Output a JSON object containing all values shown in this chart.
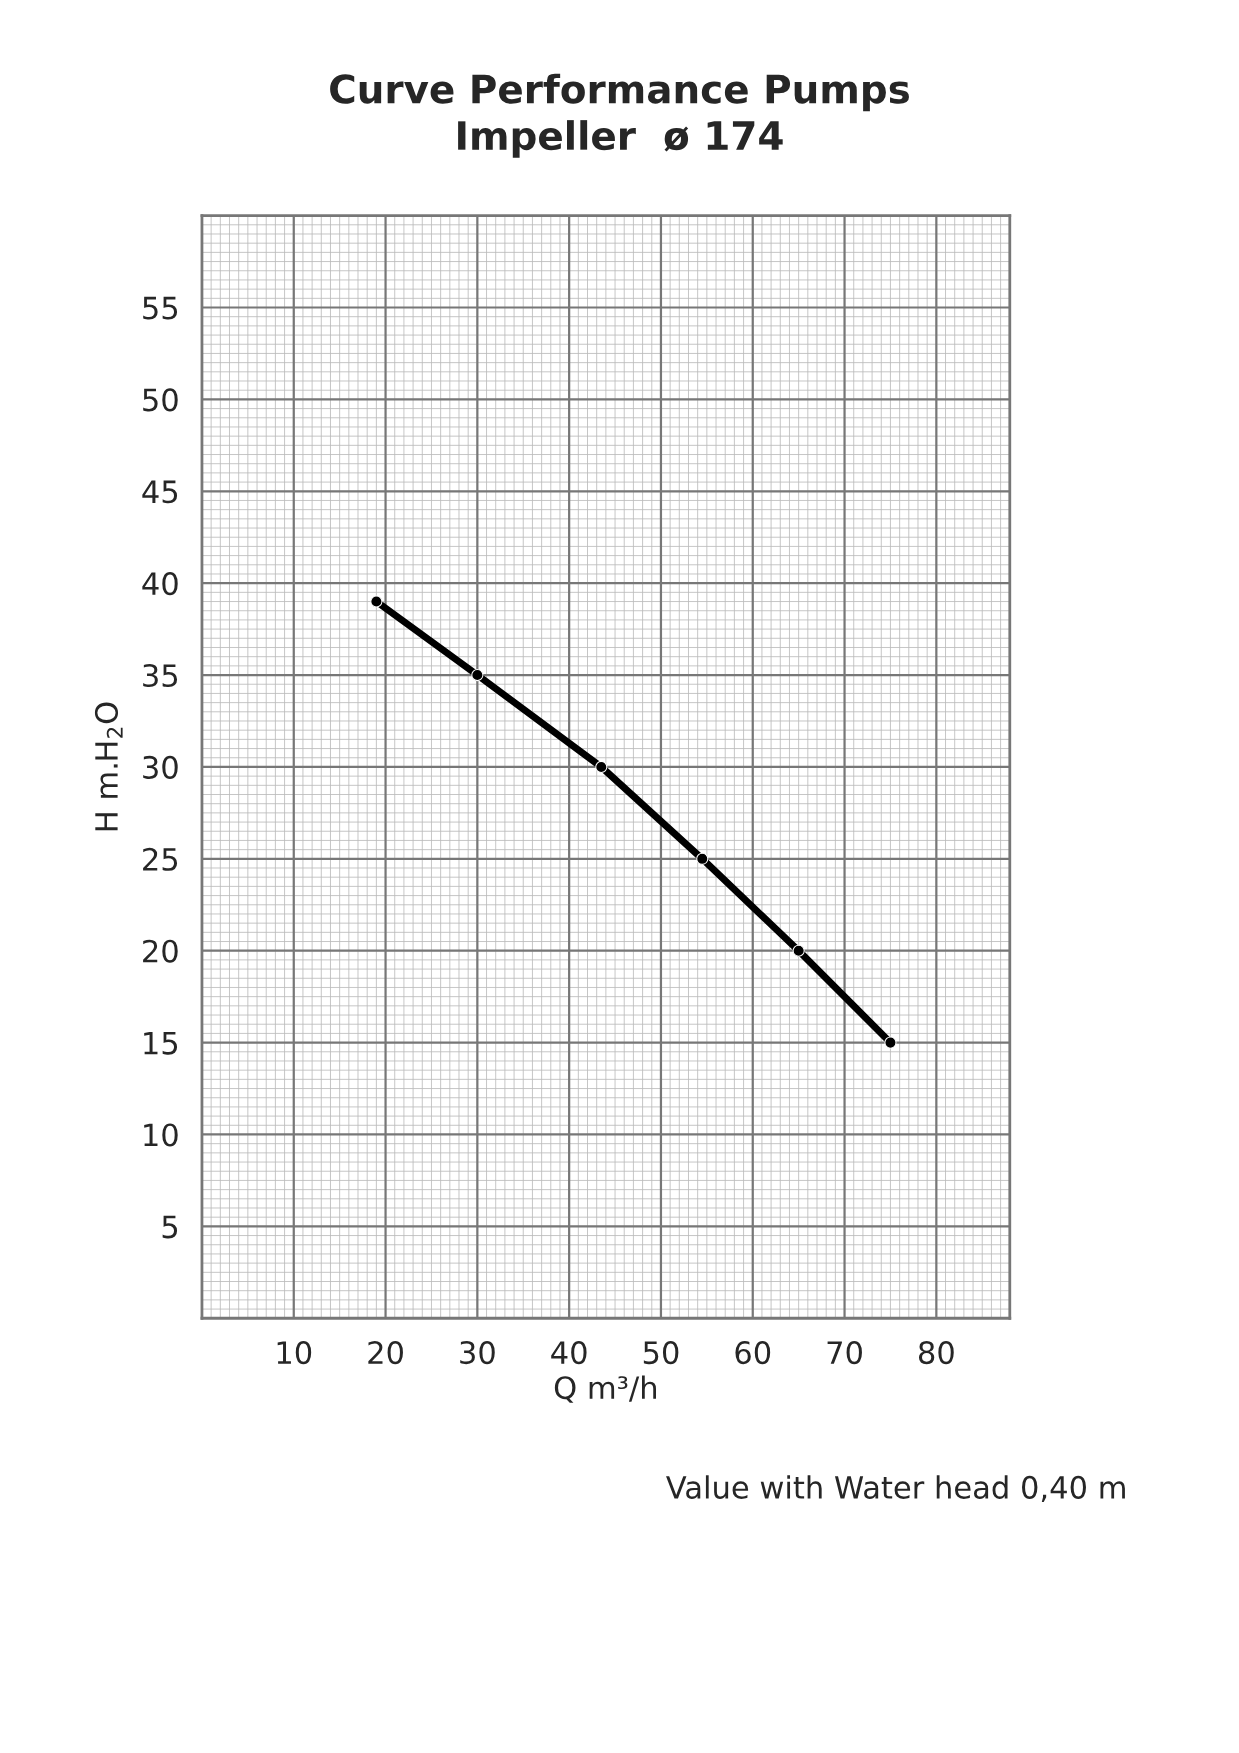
{
  "chart_data": {
    "type": "line",
    "title": "Curve Performance Pumps\nImpeller  ø 174",
    "xlabel": "Q m³/h",
    "ylabel": "H m.H$_{2}$O",
    "x": [
      19,
      30,
      43.5,
      54.5,
      65,
      75
    ],
    "series": [
      {
        "color": "#000000",
        "values": [
          39,
          35,
          30,
          25,
          20,
          15
        ]
      }
    ],
    "xlim": [
      0,
      88
    ],
    "ylim": [
      0,
      60
    ],
    "xticks": [
      10,
      20,
      30,
      40,
      50,
      60,
      70,
      80
    ],
    "yticks": [
      5,
      10,
      15,
      20,
      25,
      30,
      35,
      40,
      45,
      50,
      55
    ],
    "grid": true,
    "marker": "circle",
    "line_style": "solid",
    "legend": false,
    "annotations": [
      "Value with Water head 0,40 m"
    ]
  }
}
